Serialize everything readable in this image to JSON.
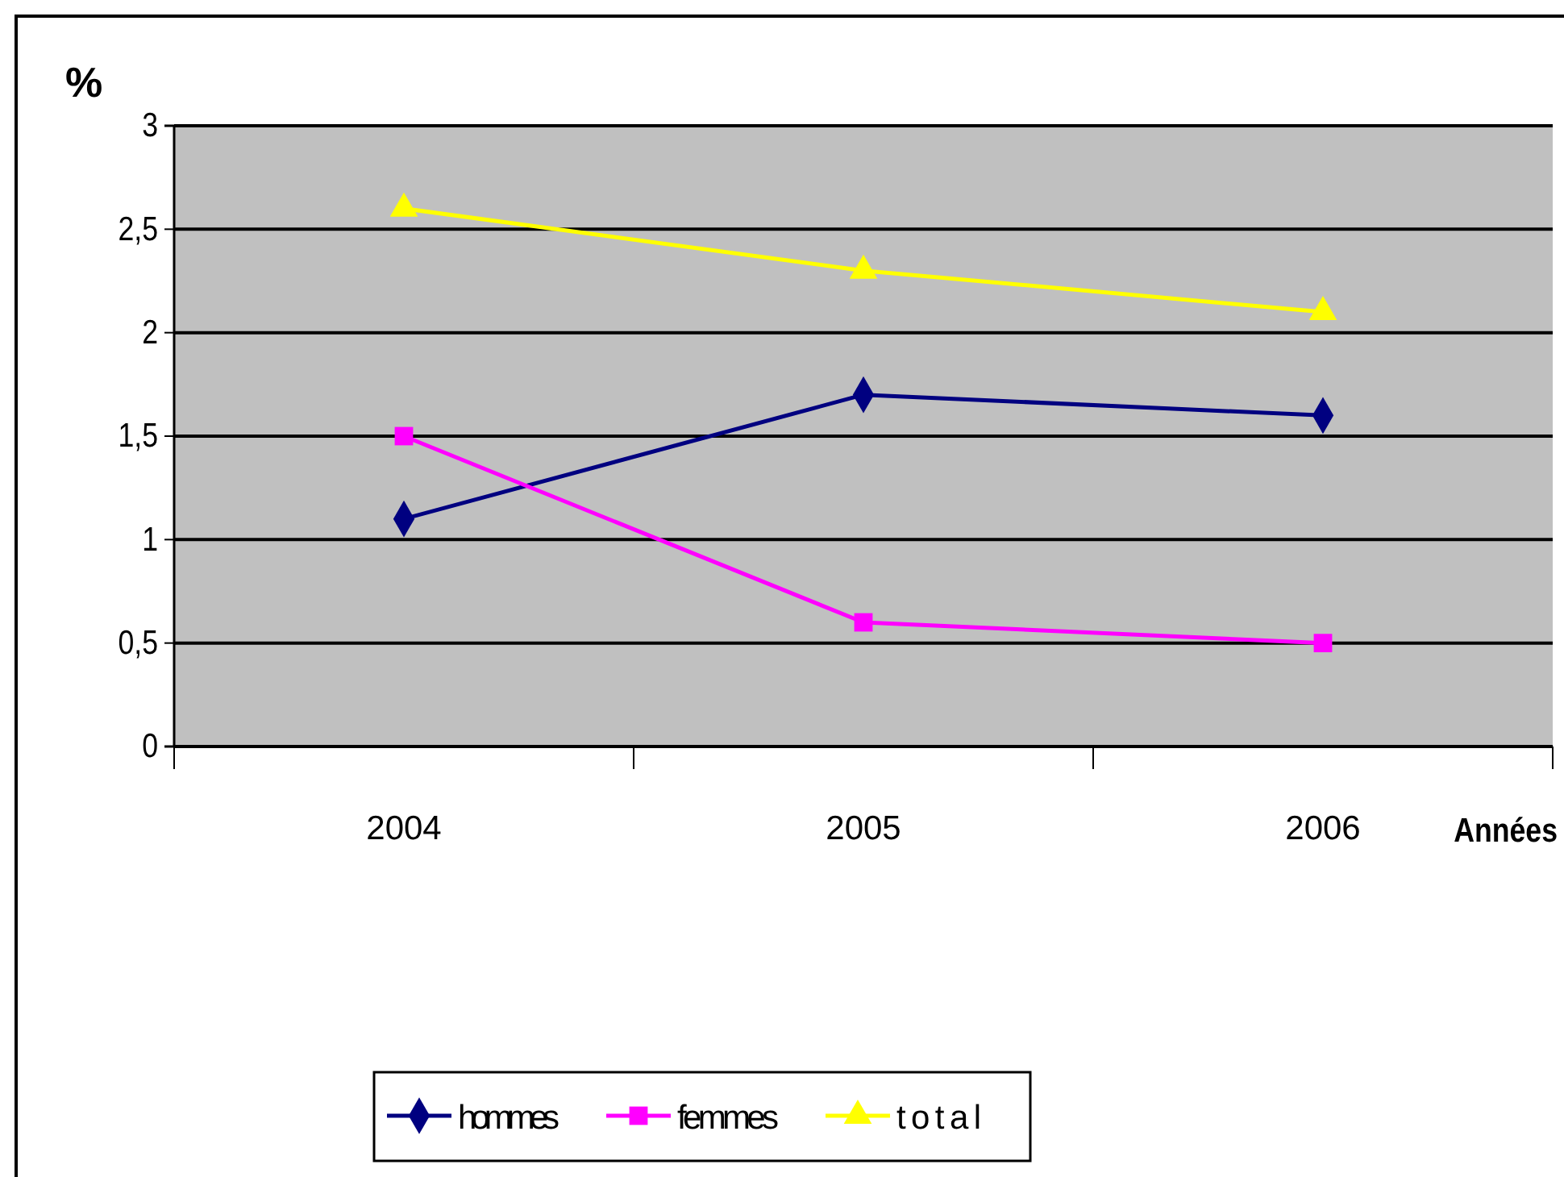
{
  "chart_data": {
    "type": "line",
    "ylabel": "%",
    "xlabel": "Années",
    "categories": [
      "2004",
      "2005",
      "2006"
    ],
    "series": [
      {
        "name": "hommes",
        "color": "#000080",
        "marker": "diamond",
        "values": [
          1.1,
          1.7,
          1.6
        ]
      },
      {
        "name": "femmes",
        "color": "#ff00ff",
        "marker": "square",
        "values": [
          1.5,
          0.6,
          0.5
        ]
      },
      {
        "name": "total",
        "color": "#ffff00",
        "marker": "triangle",
        "values": [
          2.6,
          2.3,
          2.1
        ]
      }
    ],
    "ylim": [
      0,
      3
    ],
    "yticks": [
      0,
      {
        "value": 0.5,
        "label": "0,5"
      },
      1,
      {
        "value": 1.5,
        "label": "1,5"
      },
      2,
      {
        "value": 2.5,
        "label": "2,5"
      },
      3
    ],
    "grid": "y",
    "legend": "bottom"
  }
}
